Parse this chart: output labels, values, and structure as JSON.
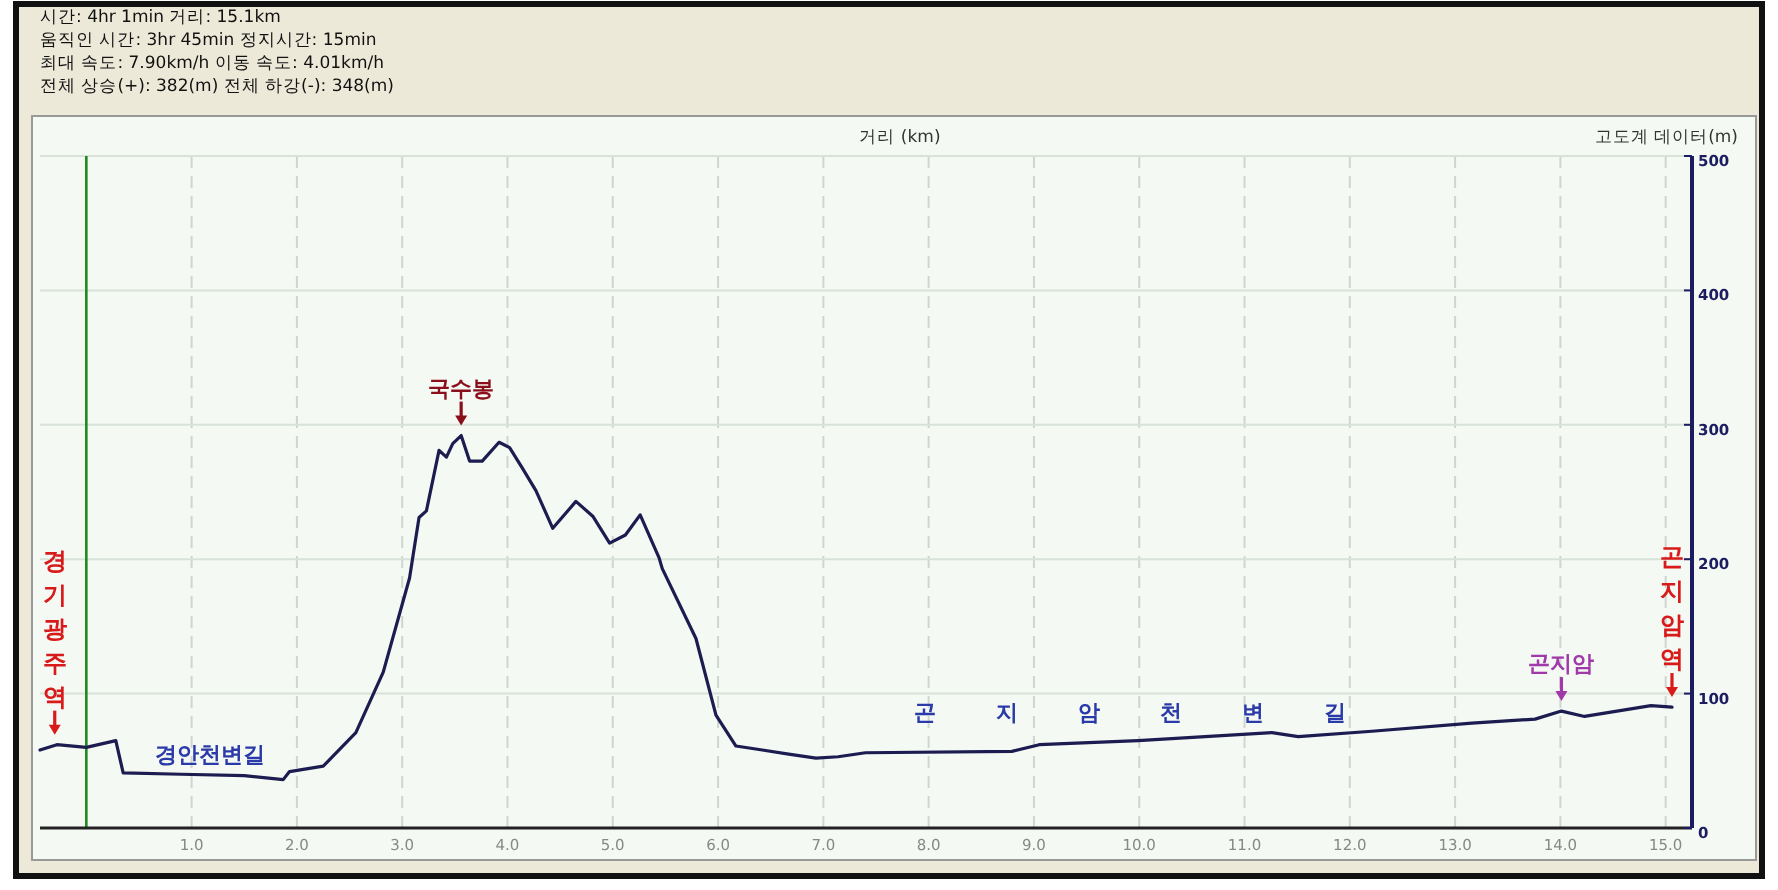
{
  "chart_data": {
    "type": "line",
    "xlabel": "거리 (km)",
    "ylabel": "고도계 데이터(m)",
    "xlim": [
      -0.44,
      15.25
    ],
    "ylim": [
      0,
      500
    ],
    "xticks": [
      {
        "value": 1,
        "label": "1.0"
      },
      {
        "value": 2,
        "label": "2.0"
      },
      {
        "value": 3,
        "label": "3.0"
      },
      {
        "value": 4,
        "label": "4.0"
      },
      {
        "value": 5,
        "label": "5.0"
      },
      {
        "value": 6,
        "label": "6.0"
      },
      {
        "value": 7,
        "label": "7.0"
      },
      {
        "value": 8,
        "label": "8.0"
      },
      {
        "value": 9,
        "label": "9.0"
      },
      {
        "value": 10,
        "label": "10.0"
      },
      {
        "value": 11,
        "label": "11.0"
      },
      {
        "value": 12,
        "label": "12.0"
      },
      {
        "value": 13,
        "label": "13.0"
      },
      {
        "value": 14,
        "label": "14.0"
      },
      {
        "value": 15,
        "label": "15.0"
      }
    ],
    "yticks": [
      0,
      100,
      200,
      300,
      400,
      500
    ],
    "grid": true,
    "ref_lines": [
      {
        "axis": "x",
        "value": 0,
        "color": "#1e8a1e"
      }
    ],
    "series": [
      {
        "color": "#1c1c50",
        "x": [
          -0.44,
          -0.28,
          0,
          0.28,
          0.35,
          0.9,
          1.5,
          1.87,
          1.93,
          2.25,
          2.56,
          2.82,
          3.07,
          3.1,
          3.16,
          3.23,
          3.35,
          3.42,
          3.48,
          3.56,
          3.64,
          3.76,
          3.92,
          4.02,
          4.14,
          4.27,
          4.43,
          4.65,
          4.81,
          4.97,
          5.12,
          5.26,
          5.44,
          5.47,
          5.79,
          5.98,
          6.17,
          6.42,
          6.67,
          6.93,
          7.14,
          7.4,
          8.79,
          9.05,
          9.99,
          11.26,
          11.51,
          12.21,
          13.16,
          13.76,
          14.01,
          14.23,
          14.86,
          15.06
        ],
        "values": [
          58,
          62,
          60,
          65,
          41,
          40,
          39,
          36,
          42,
          46,
          71,
          116,
          186,
          201,
          231,
          236,
          281,
          276,
          286,
          292,
          273,
          273,
          287,
          283,
          268,
          251,
          223,
          243,
          232,
          212,
          218,
          233,
          201,
          193,
          141,
          84,
          61,
          58,
          55,
          52,
          53,
          56,
          57,
          62,
          65,
          71,
          68,
          72,
          78,
          81,
          87,
          83,
          91,
          90
        ]
      }
    ],
    "annotations": [
      "시간: 4hr 1min  거리: 15.1km",
      "움직인 시간: 3hr 45min  정지시간: 15min",
      "최대 속도: 7.90km/h  이동 속도: 4.01km/h",
      "전체 상승(+): 382(m)  전체 하강(-): 348(m)",
      {
        "text": "경기광주역",
        "x": -0.3,
        "y": 62
      },
      "경안천변길",
      "곤지암천변길",
      {
        "text": "국수봉",
        "x": 3.56,
        "y": 292
      },
      {
        "text": "곤지암",
        "x": 14.01,
        "y": 87
      },
      {
        "text": "곤지암역",
        "x": 15.06,
        "y": 90
      }
    ]
  }
}
